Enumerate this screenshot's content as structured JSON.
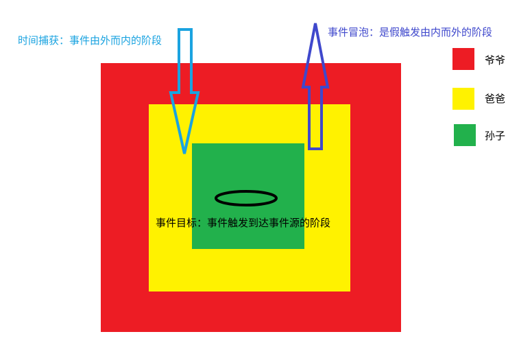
{
  "colors": {
    "grandpa": "#ED1C24",
    "father": "#FFF200",
    "grandson": "#22B14C",
    "capture_arrow": "#1AA3E0",
    "bubble_arrow": "#3F48CC",
    "target_ring": "#000000"
  },
  "labels": {
    "capture": "时间捕获：事件由外而内的阶段",
    "bubble": "事件冒泡：是假触发由内而外的阶段",
    "target": "事件目标：事件触发到达事件源的阶段"
  },
  "legend": {
    "items": [
      {
        "label": "爷爷",
        "color": "#ED1C24"
      },
      {
        "label": "爸爸",
        "color": "#FFF200"
      },
      {
        "label": "孙子",
        "color": "#22B14C"
      }
    ]
  }
}
